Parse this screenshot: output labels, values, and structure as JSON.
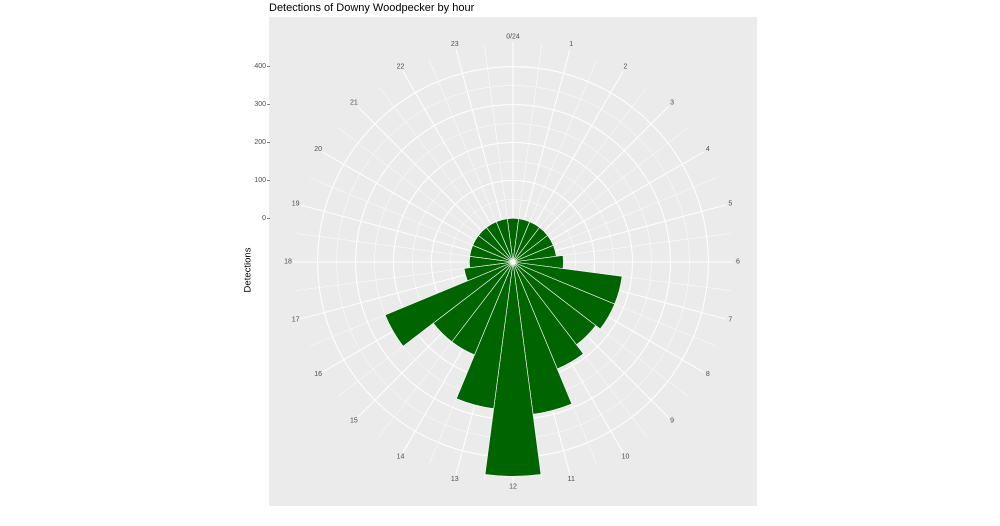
{
  "chart_data": {
    "type": "bar",
    "coord": "polar",
    "title": "Detections of Downy Woodpecker by hour",
    "xlabel": "",
    "ylabel": "Detections",
    "categories": [
      "0/24",
      "1",
      "2",
      "3",
      "4",
      "5",
      "6",
      "7",
      "8",
      "9",
      "10",
      "11",
      "12",
      "13",
      "14",
      "15",
      "16",
      "17",
      "18",
      "19",
      "20",
      "21",
      "22",
      "23"
    ],
    "values": [
      0,
      0,
      0,
      0,
      0,
      0,
      18,
      175,
      175,
      160,
      190,
      290,
      450,
      275,
      150,
      150,
      250,
      15,
      0,
      0,
      0,
      0,
      0,
      0
    ],
    "y_ticks": [
      0,
      100,
      200,
      300,
      400
    ],
    "ylim": [
      -115,
      465
    ],
    "bar_color": "#006400",
    "panel_color": "#ebebeb",
    "grid": true,
    "legend": "none"
  }
}
